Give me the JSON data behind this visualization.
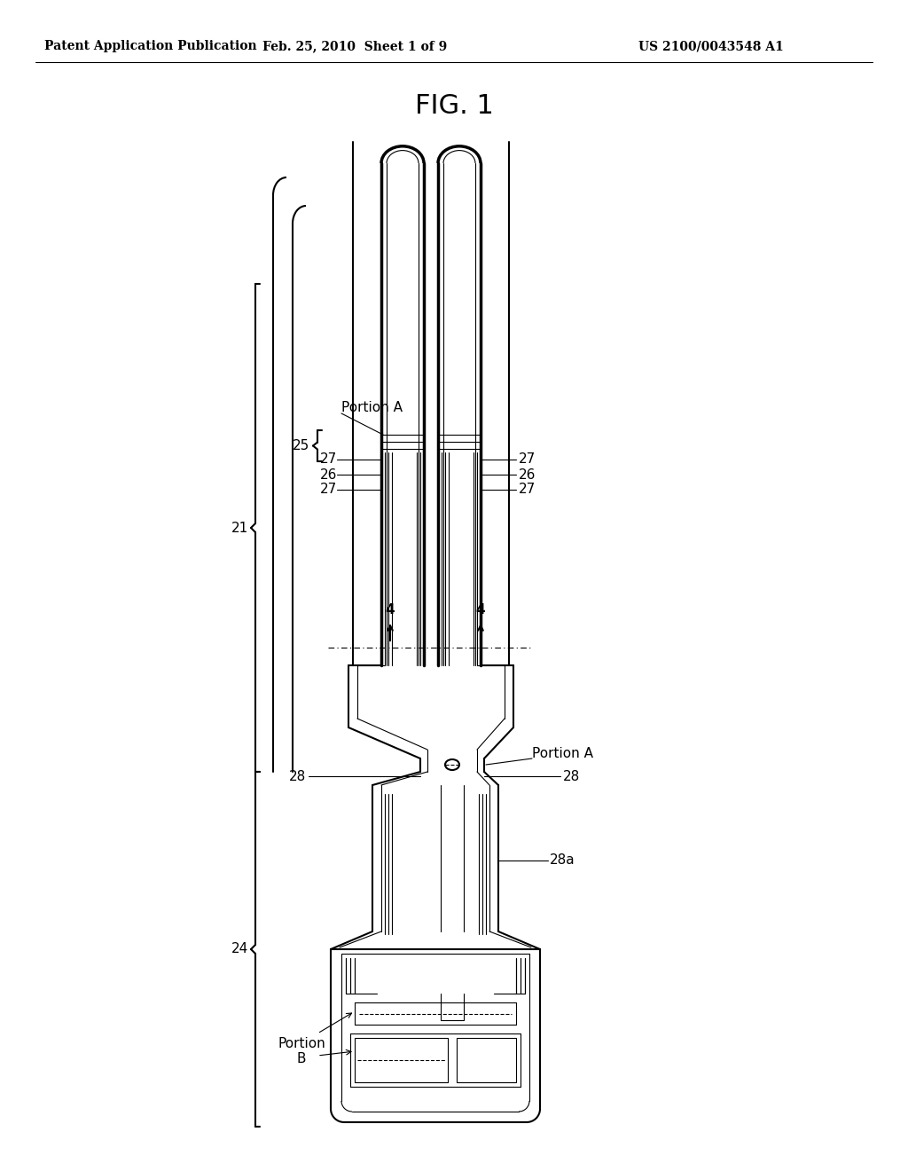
{
  "title": "FIG. 1",
  "header_left": "Patent Application Publication",
  "header_center": "Feb. 25, 2010  Sheet 1 of 9",
  "header_right": "US 2100/0043548 A1",
  "bg_color": "#ffffff",
  "line_color": "#000000",
  "label_fontsize": 11,
  "header_fontsize": 10,
  "title_fontsize": 22
}
